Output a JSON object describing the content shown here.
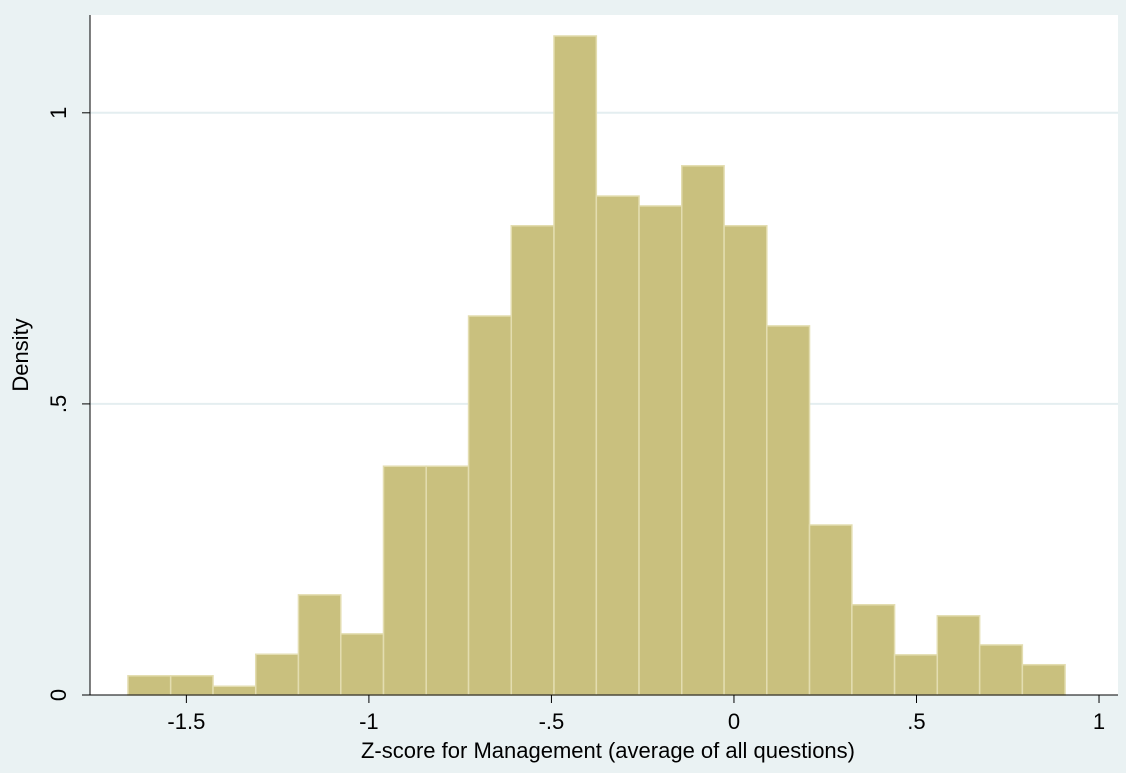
{
  "chart_data": {
    "type": "histogram",
    "x_label": "Z-score for Management (average of all questions)",
    "y_label": "Density",
    "bins": [
      -1.66,
      -1.543,
      -1.427,
      -1.31,
      -1.193,
      -1.077,
      -0.96,
      -0.843,
      -0.727,
      -0.61,
      -0.493,
      -0.377,
      -0.26,
      -0.143,
      -0.027,
      0.09,
      0.207,
      0.323,
      0.44,
      0.557,
      0.673,
      0.79,
      0.907
    ],
    "values": [
      0.033,
      0.033,
      0.015,
      0.07,
      0.172,
      0.105,
      0.393,
      0.393,
      0.651,
      0.806,
      1.132,
      0.857,
      0.84,
      0.909,
      0.806,
      0.634,
      0.292,
      0.155,
      0.069,
      0.136,
      0.086,
      0.052
    ],
    "color": "#c9c07e",
    "edge_color": "#e3ddb0",
    "xlim": [
      -1.764,
      1.052
    ],
    "ylim": [
      0,
      1.168
    ],
    "xticks": [
      -1.5,
      -1,
      {
        "value": -0.5,
        "label": "-.5"
      },
      0,
      {
        "value": 0.5,
        "label": ".5"
      },
      1
    ],
    "yticks": [
      0,
      {
        "value": 0.5,
        "label": ".5"
      },
      1
    ],
    "grid": true
  }
}
